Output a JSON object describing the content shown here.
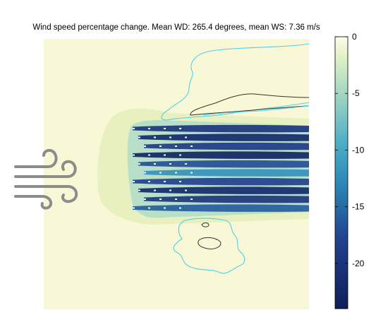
{
  "title": "Wind speed percentage change. Mean WD: 265.4 degrees, mean WS: 7.36 m/s",
  "chart_data": {
    "type": "heatmap",
    "title": "Wind speed percentage change. Mean WD: 265.4 degrees, mean WS: 7.36 m/s",
    "mean_wind_direction_deg": 265.4,
    "mean_wind_speed_ms": 7.36,
    "colorbar": {
      "min": -24,
      "max": 0,
      "ticks": [
        0,
        -5,
        -10,
        -15,
        -20
      ],
      "tick_labels": [
        "0",
        "-5",
        "-10",
        "-15",
        "-20"
      ],
      "levels": 24,
      "color_low": "#0f1e5a",
      "color_mid": "#4aacc6",
      "color_high": "#fdfde8"
    },
    "background_color": "#f8f8d6",
    "contour_colors": {
      "cyan": "#4fd0e8",
      "dark": "#333333"
    },
    "wind_rows": [
      {
        "value": -20
      },
      {
        "value": -22
      },
      {
        "value": -19
      },
      {
        "value": -23
      },
      {
        "value": -17
      },
      {
        "value": -12
      },
      {
        "value": -18
      },
      {
        "value": -22
      },
      {
        "value": -20
      },
      {
        "value": -16
      }
    ]
  }
}
